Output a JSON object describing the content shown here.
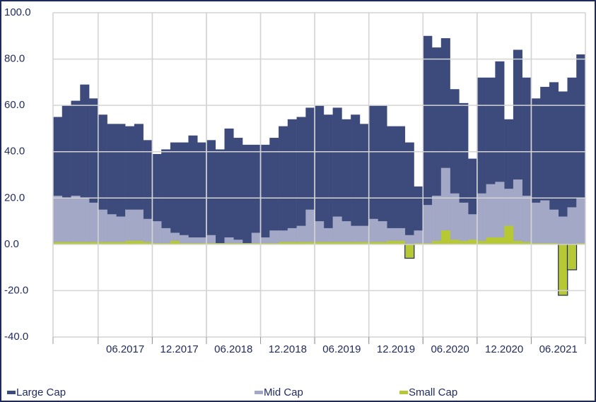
{
  "chart_data": {
    "type": "bar",
    "categories": [
      null,
      null,
      null,
      null,
      null,
      null,
      null,
      null,
      "06.2017",
      null,
      null,
      null,
      null,
      null,
      "12.2017",
      null,
      null,
      null,
      null,
      null,
      "06.2018",
      null,
      null,
      null,
      null,
      null,
      "12.2018",
      null,
      null,
      null,
      null,
      null,
      "06.2019",
      null,
      null,
      null,
      null,
      null,
      "12.2019",
      null,
      null,
      null,
      null,
      null,
      "06.2020",
      null,
      null,
      null,
      null,
      null,
      "12.2020",
      null,
      null,
      null,
      null,
      null,
      "06.2021",
      null,
      null
    ],
    "series": [
      {
        "name": "Large Cap",
        "color": "#3d4a7c",
        "values": [
          55,
          60,
          62,
          69,
          63,
          56,
          52,
          52,
          51,
          52,
          45,
          39,
          41,
          44,
          44,
          47,
          44,
          45,
          41,
          50,
          46,
          43,
          43,
          43,
          46,
          51,
          54,
          55,
          59,
          60,
          56,
          59,
          54,
          56,
          52,
          60,
          60,
          51,
          51,
          44,
          25,
          90,
          85,
          89,
          67,
          61,
          37,
          72,
          72,
          79,
          54,
          84,
          72,
          63,
          68,
          70,
          66,
          72,
          82
        ]
      },
      {
        "name": "Mid Cap",
        "color": "#a2a8c6",
        "values": [
          21,
          20,
          21,
          20,
          18,
          15,
          13,
          12,
          15,
          15,
          11,
          10,
          7,
          5,
          4,
          3,
          3,
          4,
          0.5,
          3,
          2,
          0.5,
          5,
          3,
          6,
          6,
          7,
          8,
          15,
          10,
          7,
          12,
          10,
          8,
          8,
          11,
          10,
          7,
          7,
          4,
          6,
          17,
          21,
          33,
          22,
          18,
          13,
          22,
          26,
          27,
          24,
          28,
          21,
          18,
          19,
          15,
          12,
          16,
          20
        ]
      },
      {
        "name": "Small Cap",
        "color": "#b6c935",
        "values": [
          1,
          1,
          1,
          1,
          1,
          1,
          1,
          1,
          1.5,
          1.5,
          1,
          0.5,
          0.5,
          1.5,
          0.5,
          0.5,
          0.5,
          0.5,
          0.5,
          0.5,
          0.5,
          0.5,
          0.5,
          0.5,
          0.5,
          1,
          1,
          1,
          1,
          1,
          1,
          1,
          1,
          1,
          1,
          1,
          1,
          1.5,
          1.5,
          -6,
          0.5,
          0.5,
          1.5,
          6,
          2,
          1.5,
          2,
          1.5,
          3,
          3,
          8,
          1.5,
          1,
          0.5,
          0.5,
          0.5,
          -22,
          -11,
          0.5
        ]
      }
    ],
    "ylim": [
      -40,
      100
    ],
    "yticks": [
      {
        "value": -40,
        "label": "-40.0"
      },
      {
        "value": -20,
        "label": "-20.0"
      },
      {
        "value": 0,
        "label": "0.0"
      },
      {
        "value": 20,
        "label": "20.0"
      },
      {
        "value": 40,
        "label": "40.0"
      },
      {
        "value": 60,
        "label": "60.0"
      },
      {
        "value": 80,
        "label": "80.0"
      },
      {
        "value": 100,
        "label": "100.0"
      }
    ],
    "grid": true,
    "legend": "bottom"
  }
}
